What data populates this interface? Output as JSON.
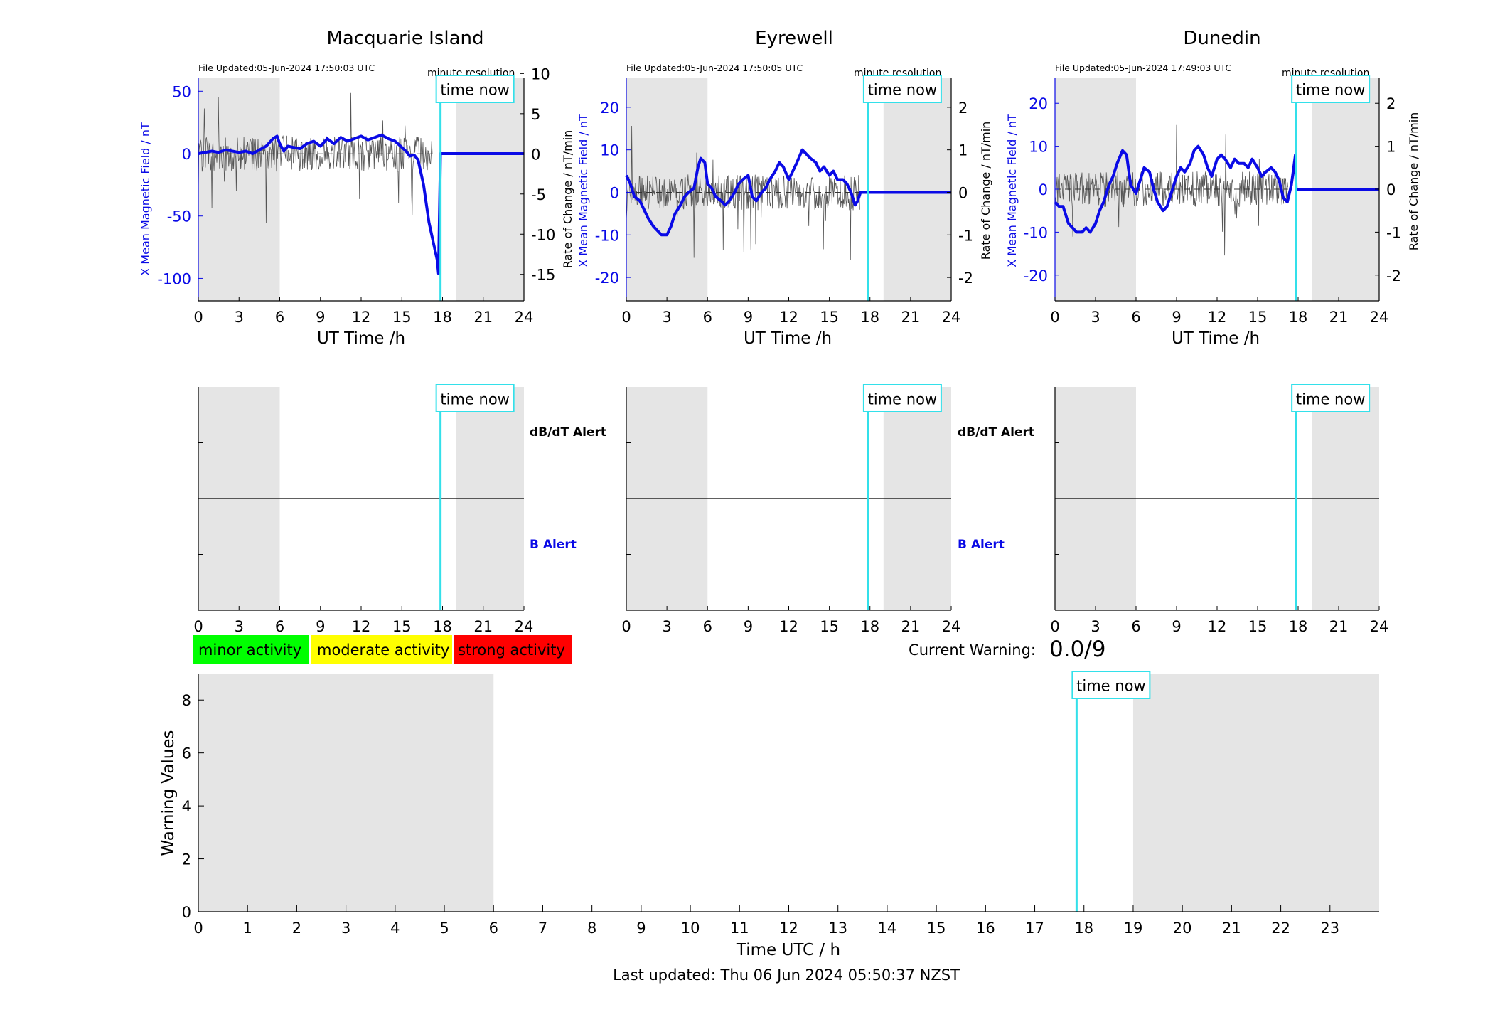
{
  "colors": {
    "background": "#ffffff",
    "night_shading": "#e5e5e5",
    "field_line": "#0a0ae6",
    "rate_line": "#555555",
    "time_now": "#33e0ea",
    "axis": "#000000",
    "minor": "#00ff00",
    "moderate": "#ffff00",
    "strong": "#ff0000"
  },
  "time_now_label": "time now",
  "minute_resolution_label": "minute resolution",
  "time_now_hours": 17.85,
  "stations": [
    {
      "id": "macquarie",
      "title": "Macquarie Island",
      "file_updated": "File Updated:05-Jun-2024 17:50:03 UTC",
      "ylabel_left": "X Mean Magnetic Field / nT",
      "ylabel_right": "Rate of Change / nT/min",
      "xlabel": "UT Time /h",
      "xticks": [
        0,
        3,
        6,
        9,
        12,
        15,
        18,
        21,
        24
      ],
      "ylim_left": [
        -118,
        61
      ],
      "yticks_left": [
        50,
        0,
        -50,
        -100
      ],
      "ylim_right": [
        -18.3,
        9.5
      ],
      "yticks_right": [
        10,
        5,
        0,
        -5,
        -10,
        -15
      ],
      "shade": [
        [
          0,
          6
        ],
        [
          19,
          24
        ]
      ],
      "alert_high_label": "dB/dT Alert",
      "alert_low_label": "B Alert"
    },
    {
      "id": "eyrewell",
      "title": "Eyrewell",
      "file_updated": "File Updated:05-Jun-2024 17:50:05 UTC",
      "ylabel_left": "X Mean Magnetic Field / nT",
      "ylabel_right": "Rate of Change / nT/min",
      "xlabel": "UT Time /h",
      "xticks": [
        0,
        3,
        6,
        9,
        12,
        15,
        18,
        21,
        24
      ],
      "ylim_left": [
        -25.5,
        27
      ],
      "yticks_left": [
        20,
        10,
        0,
        -10,
        -20
      ],
      "ylim_right": [
        -2.55,
        2.7
      ],
      "yticks_right": [
        2,
        1,
        0,
        -1,
        -2
      ],
      "shade": [
        [
          0,
          6
        ],
        [
          19,
          24
        ]
      ],
      "alert_high_label": "dB/dT Alert",
      "alert_low_label": "B Alert"
    },
    {
      "id": "dunedin",
      "title": "Dunedin",
      "file_updated": "File Updated:05-Jun-2024 17:49:03 UTC",
      "ylabel_left": "X Mean Magnetic Field / nT",
      "ylabel_right": "Rate of Change / nT/min",
      "xlabel": "UT Time /h",
      "xticks": [
        0,
        3,
        6,
        9,
        12,
        15,
        18,
        21,
        24
      ],
      "ylim_left": [
        -26,
        26
      ],
      "yticks_left": [
        20,
        10,
        0,
        -10,
        -20
      ],
      "ylim_right": [
        -2.6,
        2.6
      ],
      "yticks_right": [
        2,
        1,
        0,
        -1,
        -2
      ],
      "shade": [
        [
          0,
          6
        ],
        [
          19,
          24
        ]
      ],
      "alert_high_label": "",
      "alert_low_label": ""
    }
  ],
  "legend": [
    {
      "label": "minor activity",
      "color": "#00ff00"
    },
    {
      "label": "moderate activity",
      "color": "#ffff00"
    },
    {
      "label": "strong activity",
      "color": "#ff0000"
    }
  ],
  "current_warning_label": "Current Warning:",
  "current_warning_value": "0.0/9",
  "warning_chart": {
    "ylabel": "Warning Values",
    "xlabel": "Time UTC / h",
    "xlim": [
      0,
      24
    ],
    "xticks": [
      0,
      1,
      2,
      3,
      4,
      5,
      6,
      7,
      8,
      9,
      10,
      11,
      12,
      13,
      14,
      15,
      16,
      17,
      18,
      19,
      20,
      21,
      22,
      23
    ],
    "ylim": [
      0,
      9
    ],
    "yticks": [
      0,
      2,
      4,
      6,
      8
    ],
    "shade": [
      [
        0,
        6
      ],
      [
        19,
        24
      ]
    ],
    "values": []
  },
  "footer": "Last updated: Thu 06 Jun 2024 05:50:37 NZST",
  "chart_data": [
    {
      "type": "line",
      "title": "Macquarie Island",
      "xlabel": "UT Time /h",
      "ylabel": "X Mean Magnetic Field / nT",
      "ylabel_right": "Rate of Change / nT/min",
      "xlim": [
        0,
        24
      ],
      "grid": false,
      "series": [
        {
          "axis": "left",
          "x": [
            0,
            0.5,
            1,
            1.5,
            2,
            2.5,
            3,
            3.5,
            4,
            4.5,
            5,
            5.5,
            5.8,
            6,
            6.3,
            6.6,
            7,
            7.5,
            8,
            8.5,
            9,
            9.5,
            10,
            10.5,
            11,
            11.5,
            12,
            12.5,
            13,
            13.5,
            14,
            14.5,
            15,
            15.3,
            15.6,
            15.9,
            16.2,
            16.4,
            16.6,
            16.8,
            17,
            17.2,
            17.4,
            17.6,
            17.7,
            17.85,
            18,
            19,
            20,
            21,
            22,
            23,
            24
          ],
          "y": [
            0,
            1,
            2,
            1,
            3,
            2,
            1,
            2,
            0,
            3,
            6,
            12,
            14,
            8,
            2,
            6,
            5,
            4,
            8,
            10,
            6,
            12,
            8,
            13,
            10,
            12,
            14,
            11,
            13,
            15,
            12,
            10,
            5,
            2,
            -2,
            -1,
            -5,
            -15,
            -25,
            -40,
            -55,
            -65,
            -75,
            -85,
            -96,
            0,
            0,
            0,
            0,
            0,
            0,
            0,
            0
          ]
        }
      ]
    },
    {
      "type": "line",
      "title": "Eyrewell",
      "xlabel": "UT Time /h",
      "ylabel": "X Mean Magnetic Field / nT",
      "ylabel_right": "Rate of Change / nT/min",
      "xlim": [
        0,
        24
      ],
      "grid": false,
      "series": [
        {
          "axis": "left",
          "x": [
            0,
            0.3,
            0.6,
            1,
            1.3,
            1.6,
            2,
            2.3,
            2.6,
            3,
            3.3,
            3.6,
            4,
            4.3,
            4.6,
            5,
            5.3,
            5.5,
            5.8,
            6,
            6.3,
            6.6,
            7,
            7.3,
            7.6,
            8,
            8.3,
            8.6,
            9,
            9.3,
            9.6,
            10,
            10.3,
            10.6,
            11,
            11.3,
            11.6,
            12,
            12.3,
            12.6,
            13,
            13.3,
            13.6,
            14,
            14.3,
            14.6,
            15,
            15.3,
            15.6,
            16,
            16.3,
            16.6,
            16.9,
            17.1,
            17.3,
            17.85,
            18,
            19,
            20,
            21,
            22,
            23,
            24
          ],
          "y": [
            4,
            2,
            -1,
            -2,
            -4,
            -6,
            -8,
            -9,
            -10,
            -10,
            -8,
            -5,
            -3,
            -1,
            0,
            1,
            6,
            8,
            7,
            2,
            1,
            -1,
            -2,
            -3,
            -2,
            0,
            2,
            3,
            4,
            -1,
            -2,
            0,
            1,
            3,
            5,
            7,
            6,
            3,
            5,
            7,
            10,
            9,
            8,
            7,
            5,
            6,
            4,
            5,
            3,
            3,
            2,
            0,
            -3,
            -2,
            0,
            0,
            0,
            0,
            0,
            0,
            0,
            0,
            0
          ]
        }
      ]
    },
    {
      "type": "line",
      "title": "Dunedin",
      "xlabel": "UT Time /h",
      "ylabel": "X Mean Magnetic Field / nT",
      "ylabel_right": "Rate of Change / nT/min",
      "xlim": [
        0,
        24
      ],
      "grid": false,
      "series": [
        {
          "axis": "left",
          "x": [
            0,
            0.3,
            0.6,
            1,
            1.3,
            1.6,
            2,
            2.3,
            2.6,
            3,
            3.3,
            3.6,
            4,
            4.3,
            4.6,
            5,
            5.3,
            5.6,
            6,
            6.3,
            6.6,
            7,
            7.3,
            7.6,
            8,
            8.3,
            8.6,
            9,
            9.3,
            9.6,
            10,
            10.3,
            10.6,
            11,
            11.3,
            11.6,
            12,
            12.3,
            12.6,
            13,
            13.3,
            13.6,
            14,
            14.3,
            14.6,
            15,
            15.3,
            15.6,
            16,
            16.3,
            16.6,
            16.9,
            17.2,
            17.5,
            17.8,
            17.85,
            18,
            19,
            20,
            21,
            22,
            23,
            24
          ],
          "y": [
            -3,
            -4,
            -4,
            -8,
            -9,
            -10,
            -10,
            -9,
            -10,
            -8,
            -5,
            -3,
            1,
            3,
            6,
            9,
            8,
            1,
            -1,
            2,
            5,
            4,
            0,
            -3,
            -5,
            -4,
            -1,
            3,
            5,
            4,
            6,
            9,
            10,
            8,
            5,
            3,
            7,
            8,
            7,
            5,
            7,
            6,
            6,
            5,
            7,
            5,
            3,
            4,
            5,
            4,
            2,
            -2,
            -3,
            1,
            8,
            0,
            0,
            0,
            0,
            0,
            0,
            0,
            0
          ]
        }
      ]
    }
  ]
}
